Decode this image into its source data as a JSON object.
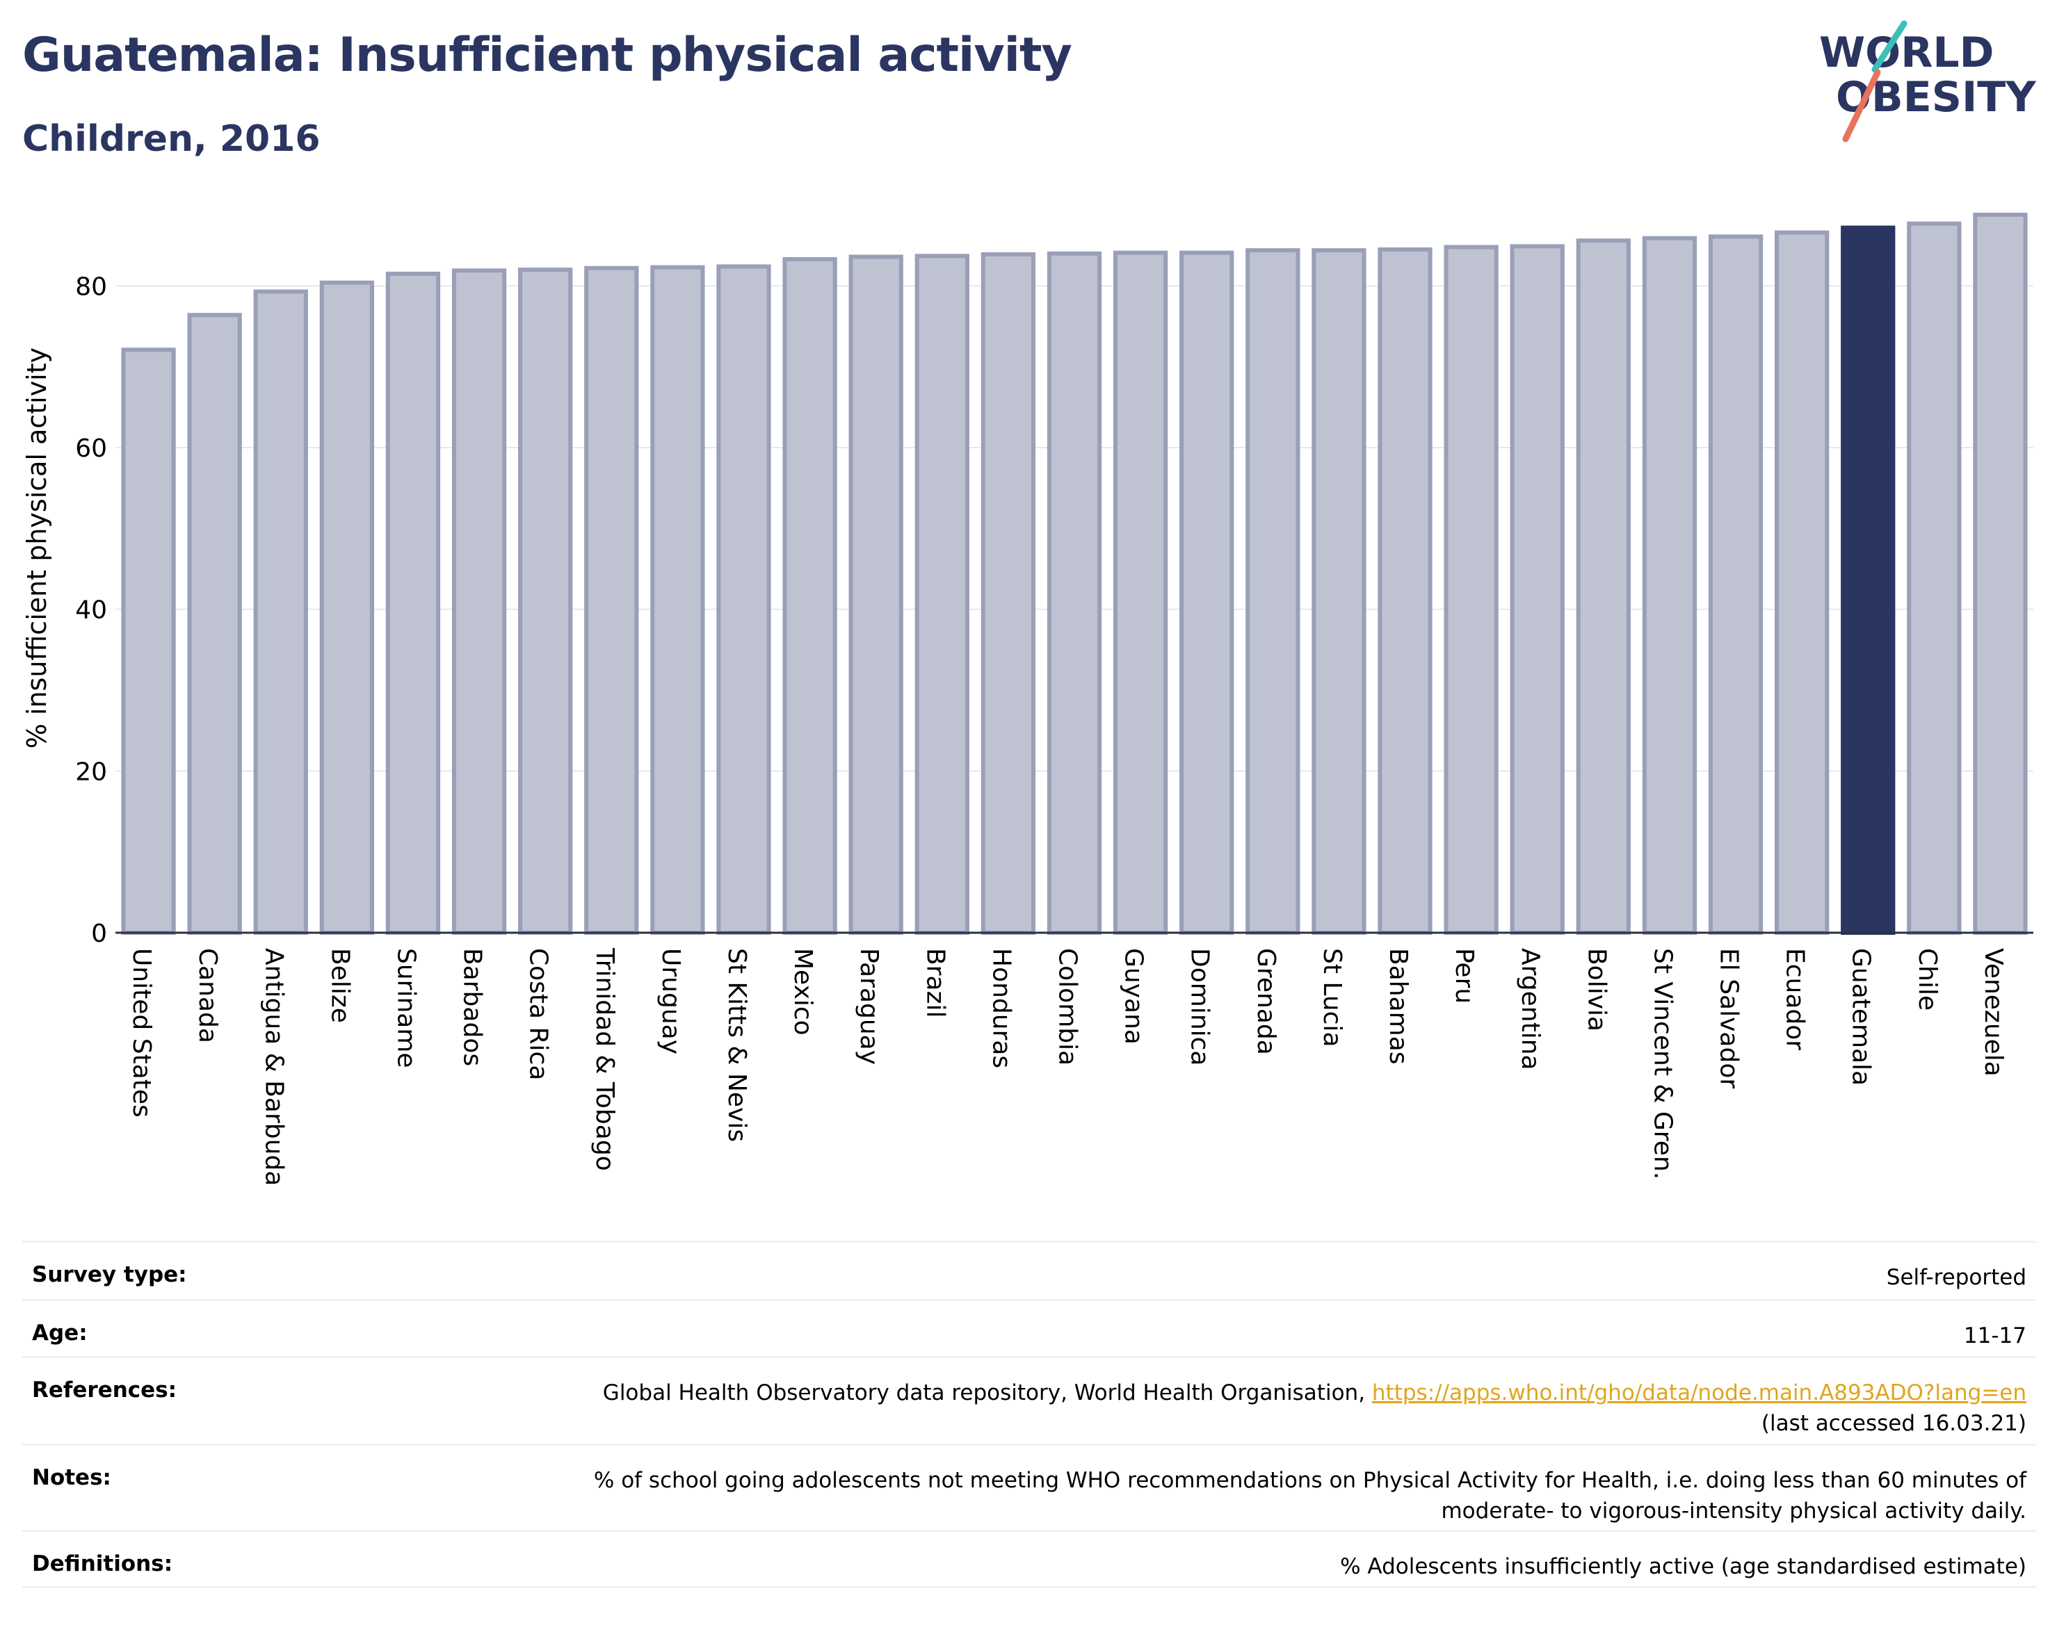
{
  "header": {
    "title": "Guatemala: Insufficient physical activity",
    "subtitle": "Children, 2016"
  },
  "logo": {
    "line1": "WORLD",
    "line2": "OBESITY",
    "icon": "world-obesity-logo"
  },
  "colors": {
    "highlight": "#2a3561",
    "bar_fill": "#bfc2d0",
    "bar_stroke": "#9a9fb8",
    "text_dark": "#2a3561",
    "link": "#e0a51e"
  },
  "chart_data": {
    "type": "bar",
    "title": "Guatemala: Insufficient physical activity",
    "subtitle": "Children, 2016",
    "ylabel": "% insufficient physical activity",
    "xlabel": "",
    "ylim": [
      0,
      90
    ],
    "yticks": [
      0,
      20,
      40,
      60,
      80
    ],
    "grid": true,
    "highlight": "Guatemala",
    "categories": [
      "United States",
      "Canada",
      "Antigua & Barbuda",
      "Belize",
      "Suriname",
      "Barbados",
      "Costa Rica",
      "Trinidad & Tobago",
      "Uruguay",
      "St Kitts & Nevis",
      "Mexico",
      "Paraguay",
      "Brazil",
      "Honduras",
      "Colombia",
      "Guyana",
      "Dominica",
      "Grenada",
      "St Lucia",
      "Bahamas",
      "Peru",
      "Argentina",
      "Bolivia",
      "St Vincent & Gren.",
      "El Salvador",
      "Ecuador",
      "Guatemala",
      "Chile",
      "Venezuela"
    ],
    "values": [
      72.1,
      76.4,
      79.3,
      80.4,
      81.5,
      81.9,
      82.0,
      82.2,
      82.3,
      82.4,
      83.3,
      83.6,
      83.7,
      83.9,
      84.0,
      84.1,
      84.1,
      84.4,
      84.4,
      84.5,
      84.8,
      84.9,
      85.6,
      85.9,
      86.1,
      86.6,
      87.2,
      87.7,
      88.8
    ]
  },
  "info": {
    "survey_label": "Survey type:",
    "survey_value": "Self-reported",
    "age_label": "Age:",
    "age_value": "11-17",
    "references_label": "References:",
    "references_text": "Global Health Observatory data repository, World Health Organisation, ",
    "references_link": "https://apps.who.int/gho/data/node.main.A893ADO?lang=en",
    "references_accessed": "(last accessed 16.03.21)",
    "notes_label": "Notes:",
    "notes_line1": "% of school going adolescents not meeting WHO recommendations on Physical Activity for Health, i.e. doing less than 60 minutes of",
    "notes_line2": "moderate- to vigorous-intensity physical activity daily.",
    "definitions_label": "Definitions:",
    "definitions_value": "% Adolescents insufficiently active (age standardised estimate)"
  }
}
